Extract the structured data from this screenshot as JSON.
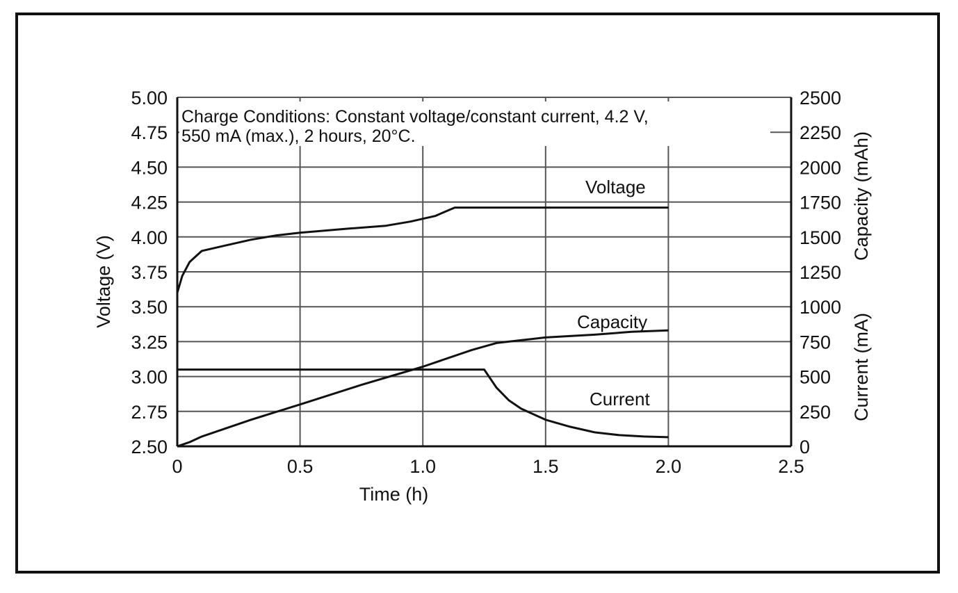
{
  "chart_data": {
    "type": "line",
    "annotation": [
      "Charge Conditions: Constant voltage/constant current, 4.2 V,",
      "550 mA (max.), 2 hours, 20°C."
    ],
    "xlabel": "Time (h)",
    "ylabel_left": "Voltage (V)",
    "ylabel_right_upper": "Capacity (mAh)",
    "ylabel_right_lower": "Current (mA)",
    "xlim": [
      0,
      2.5
    ],
    "ylim_left": [
      2.5,
      5.0
    ],
    "ylim_right": [
      0,
      2500
    ],
    "x_ticks": [
      "0",
      "0.5",
      "1.0",
      "1.5",
      "2.0",
      "2.5"
    ],
    "y_left_ticks": [
      "2.50",
      "2.75",
      "3.00",
      "3.25",
      "3.50",
      "3.75",
      "4.00",
      "4.25",
      "4.50",
      "4.75",
      "5.00"
    ],
    "y_right_ticks": [
      "0",
      "250",
      "500",
      "750",
      "1000",
      "1250",
      "1500",
      "1750",
      "2000",
      "2250",
      "2500"
    ],
    "grid": true,
    "series": [
      {
        "name": "Voltage",
        "axis": "left",
        "points": [
          [
            0,
            3.6
          ],
          [
            0.02,
            3.72
          ],
          [
            0.05,
            3.82
          ],
          [
            0.1,
            3.9
          ],
          [
            0.2,
            3.94
          ],
          [
            0.3,
            3.98
          ],
          [
            0.4,
            4.01
          ],
          [
            0.5,
            4.03
          ],
          [
            0.7,
            4.06
          ],
          [
            0.85,
            4.08
          ],
          [
            0.95,
            4.11
          ],
          [
            1.05,
            4.15
          ],
          [
            1.13,
            4.21
          ],
          [
            2.0,
            4.21
          ]
        ]
      },
      {
        "name": "Capacity",
        "axis": "right",
        "points": [
          [
            0,
            0
          ],
          [
            0.05,
            30
          ],
          [
            0.1,
            70
          ],
          [
            0.3,
            190
          ],
          [
            0.5,
            300
          ],
          [
            0.75,
            440
          ],
          [
            1.0,
            570
          ],
          [
            1.2,
            690
          ],
          [
            1.3,
            740
          ],
          [
            1.4,
            760
          ],
          [
            1.5,
            780
          ],
          [
            1.7,
            800
          ],
          [
            1.85,
            820
          ],
          [
            2.0,
            830
          ]
        ]
      },
      {
        "name": "Current",
        "axis": "right",
        "points": [
          [
            0,
            550
          ],
          [
            1.25,
            550
          ],
          [
            1.3,
            420
          ],
          [
            1.35,
            330
          ],
          [
            1.4,
            270
          ],
          [
            1.5,
            190
          ],
          [
            1.6,
            140
          ],
          [
            1.7,
            100
          ],
          [
            1.8,
            80
          ],
          [
            1.9,
            70
          ],
          [
            2.0,
            65
          ]
        ]
      }
    ]
  }
}
